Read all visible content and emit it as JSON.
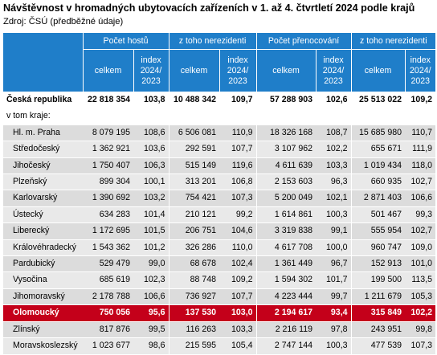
{
  "title": "Návštěvnost v hromadných ubytovacích zařízeních v 1. až 4. čtvrtletí 2024 podle krajů",
  "source": "Zdroj: ČSÚ (předběžné údaje)",
  "header": {
    "groups": [
      "Počet hostů",
      "z toho nerezidenti",
      "Počet přenocování",
      "z toho nerezidenti"
    ],
    "celkem": "celkem",
    "index": "index 2024/ 2023"
  },
  "country": {
    "label": "Česká republika",
    "values": [
      "22 818 354",
      "103,8",
      "10 488 342",
      "109,7",
      "57 288 903",
      "102,6",
      "25 513 022",
      "109,2"
    ]
  },
  "section_label": "v tom kraje:",
  "regions": [
    {
      "label": "Hl. m. Praha",
      "values": [
        "8 079 195",
        "108,6",
        "6 506 081",
        "110,9",
        "18 326 168",
        "108,7",
        "15 685 980",
        "110,7"
      ]
    },
    {
      "label": "Středočeský",
      "values": [
        "1 362 921",
        "103,6",
        "292 591",
        "107,7",
        "3 107 962",
        "102,2",
        "655 671",
        "111,9"
      ]
    },
    {
      "label": "Jihočeský",
      "values": [
        "1 750 407",
        "106,3",
        "515 149",
        "119,6",
        "4 611 639",
        "103,3",
        "1 019 434",
        "118,0"
      ]
    },
    {
      "label": "Plzeňský",
      "values": [
        "899 304",
        "100,1",
        "313 201",
        "106,8",
        "2 153 603",
        "96,3",
        "660 935",
        "102,7"
      ]
    },
    {
      "label": "Karlovarský",
      "values": [
        "1 390 692",
        "103,2",
        "754 421",
        "107,3",
        "5 200 049",
        "102,1",
        "2 871 403",
        "106,6"
      ]
    },
    {
      "label": "Ústecký",
      "values": [
        "634 283",
        "101,4",
        "210 121",
        "99,2",
        "1 614 861",
        "100,3",
        "501 467",
        "99,3"
      ]
    },
    {
      "label": "Liberecký",
      "values": [
        "1 172 695",
        "101,5",
        "206 751",
        "104,6",
        "3 319 838",
        "99,1",
        "555 954",
        "102,7"
      ]
    },
    {
      "label": "Královéhradecký",
      "values": [
        "1 543 362",
        "101,2",
        "326 286",
        "110,0",
        "4 617 708",
        "100,0",
        "960 747",
        "109,0"
      ]
    },
    {
      "label": "Pardubický",
      "values": [
        "529 479",
        "99,0",
        "68 678",
        "102,4",
        "1 361 449",
        "96,7",
        "152 913",
        "101,0"
      ]
    },
    {
      "label": "Vysočina",
      "values": [
        "685 619",
        "102,3",
        "88 748",
        "109,2",
        "1 594 302",
        "101,7",
        "199 500",
        "113,5"
      ]
    },
    {
      "label": "Jihomoravský",
      "values": [
        "2 178 788",
        "106,6",
        "736 927",
        "107,7",
        "4 223 444",
        "99,7",
        "1 211 679",
        "105,3"
      ]
    },
    {
      "label": "Olomoucký",
      "highlight": true,
      "values": [
        "750 056",
        "95,6",
        "137 530",
        "103,0",
        "2 194 617",
        "93,4",
        "315 849",
        "102,2"
      ]
    },
    {
      "label": "Zlínský",
      "values": [
        "817 876",
        "99,5",
        "116 263",
        "103,3",
        "2 216 119",
        "97,8",
        "243 951",
        "99,8"
      ]
    },
    {
      "label": "Moravskoslezský",
      "values": [
        "1 023 677",
        "98,6",
        "215 595",
        "105,4",
        "2 747 144",
        "100,3",
        "477 539",
        "107,3"
      ]
    }
  ],
  "colors": {
    "header_bg": "#1f7ec9",
    "highlight_bg": "#c4001a",
    "row_bg": "#dcdcdc"
  }
}
